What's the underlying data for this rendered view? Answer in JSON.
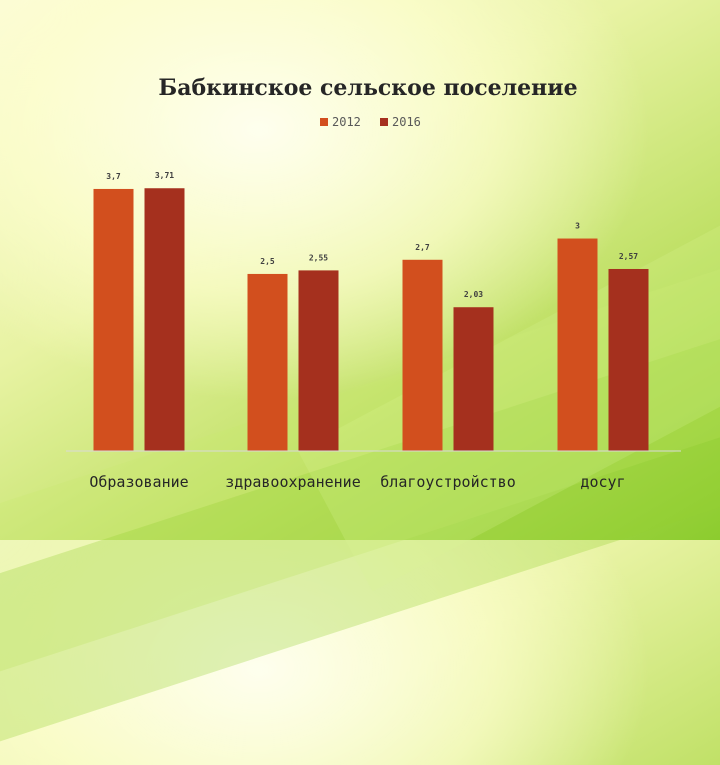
{
  "chart_data": {
    "type": "bar",
    "title": "Бабкинское сельское поселение",
    "categories": [
      "Образование",
      "здравоохранение",
      "благоустройство",
      "досуг"
    ],
    "series": [
      {
        "name": "2012",
        "values": [
          3.7,
          2.5,
          2.7,
          3
        ],
        "labels": [
          "3,7",
          "2,5",
          "2,7",
          "3"
        ],
        "color": "#d24f1e"
      },
      {
        "name": "2016",
        "values": [
          3.71,
          2.55,
          2.03,
          2.57
        ],
        "labels": [
          "3,71",
          "2,55",
          "2,03",
          "2,57"
        ],
        "color": "#a5301e"
      }
    ],
    "ylim": [
      0,
      4.25
    ],
    "grid": false,
    "legend": "top-center"
  }
}
